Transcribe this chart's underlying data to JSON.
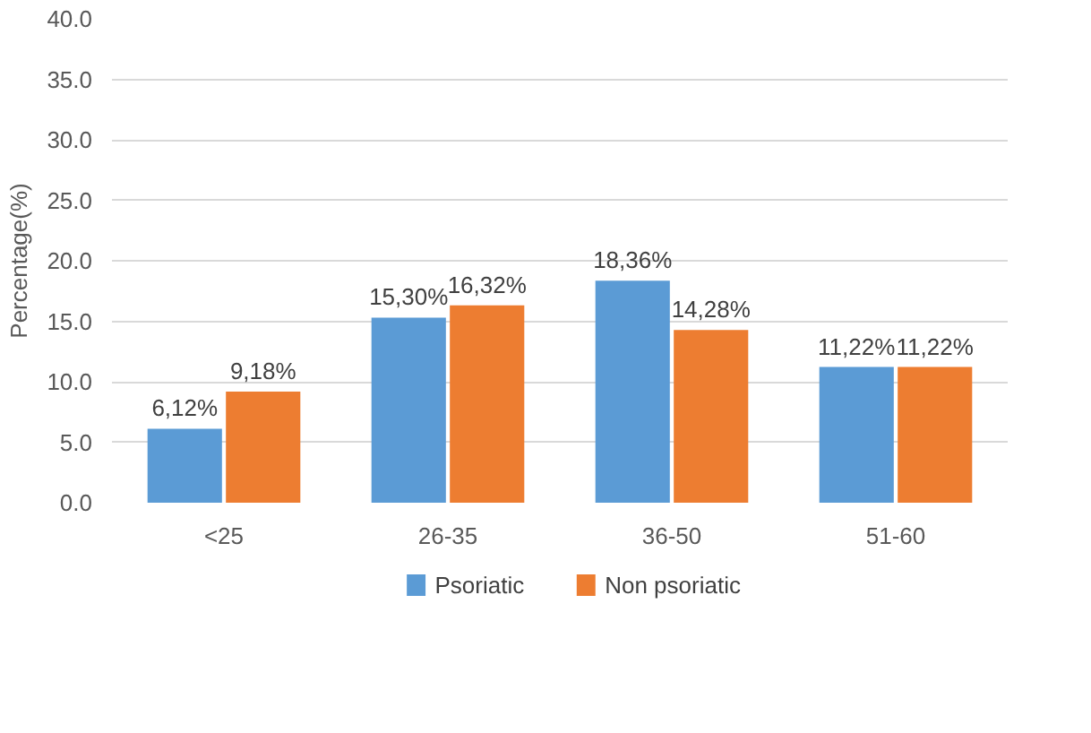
{
  "chart_data": {
    "type": "bar",
    "ylabel": "Percentage(%)",
    "categories": [
      "<25",
      "26-35",
      "36-50",
      "51-60"
    ],
    "series": [
      {
        "name": "Psoriatic",
        "color": "#5b9bd5",
        "values": [
          6.12,
          15.3,
          18.36,
          11.22
        ],
        "value_labels": [
          "6,12%",
          "15,30%",
          "18,36%",
          "11,22%"
        ]
      },
      {
        "name": "Non psoriatic",
        "color": "#ed7d31",
        "values": [
          9.18,
          16.32,
          14.28,
          11.22
        ],
        "value_labels": [
          "9,18%",
          "16,32%",
          "14,28%",
          "11,22%"
        ]
      }
    ],
    "ylim": [
      0,
      40
    ],
    "yticks": [
      {
        "value": 0,
        "label": "0.0"
      },
      {
        "value": 5,
        "label": "5.0"
      },
      {
        "value": 10,
        "label": "10.0"
      },
      {
        "value": 15,
        "label": "15.0"
      },
      {
        "value": 20,
        "label": "20.0"
      },
      {
        "value": 25,
        "label": "25.0"
      },
      {
        "value": 30,
        "label": "30.0"
      },
      {
        "value": 35,
        "label": "35.0"
      },
      {
        "value": 40,
        "label": "40.0"
      }
    ],
    "grid": "y",
    "legend": "bottom"
  }
}
